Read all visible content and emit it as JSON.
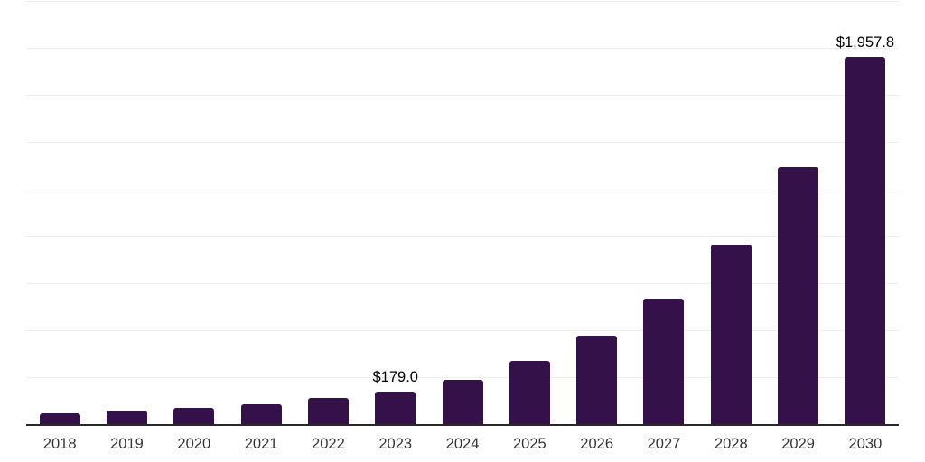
{
  "chart_data": {
    "type": "bar",
    "title": "",
    "xlabel": "",
    "ylabel": "",
    "categories": [
      "2018",
      "2019",
      "2020",
      "2021",
      "2022",
      "2023",
      "2024",
      "2025",
      "2026",
      "2027",
      "2028",
      "2029",
      "2030"
    ],
    "values": [
      61,
      76,
      91,
      110,
      143,
      179.0,
      242,
      342,
      477,
      673,
      958,
      1374,
      1957.8
    ],
    "bar_labels": [
      "",
      "",
      "",
      "",
      "",
      "$179.0",
      "",
      "",
      "",
      "",
      "",
      "",
      "$1,957.8"
    ],
    "ylim": [
      0,
      2250
    ],
    "grid_step": 250,
    "gridlines": "horizontal",
    "y_axis_tick_labels_visible": false,
    "legend": false,
    "colors": {
      "bar": "#35114A",
      "gridline": "#EDEDED",
      "axis_line": "#282828",
      "x_tick_label": "#333333",
      "value_label": "#000000",
      "background": "#FFFFFF"
    }
  }
}
